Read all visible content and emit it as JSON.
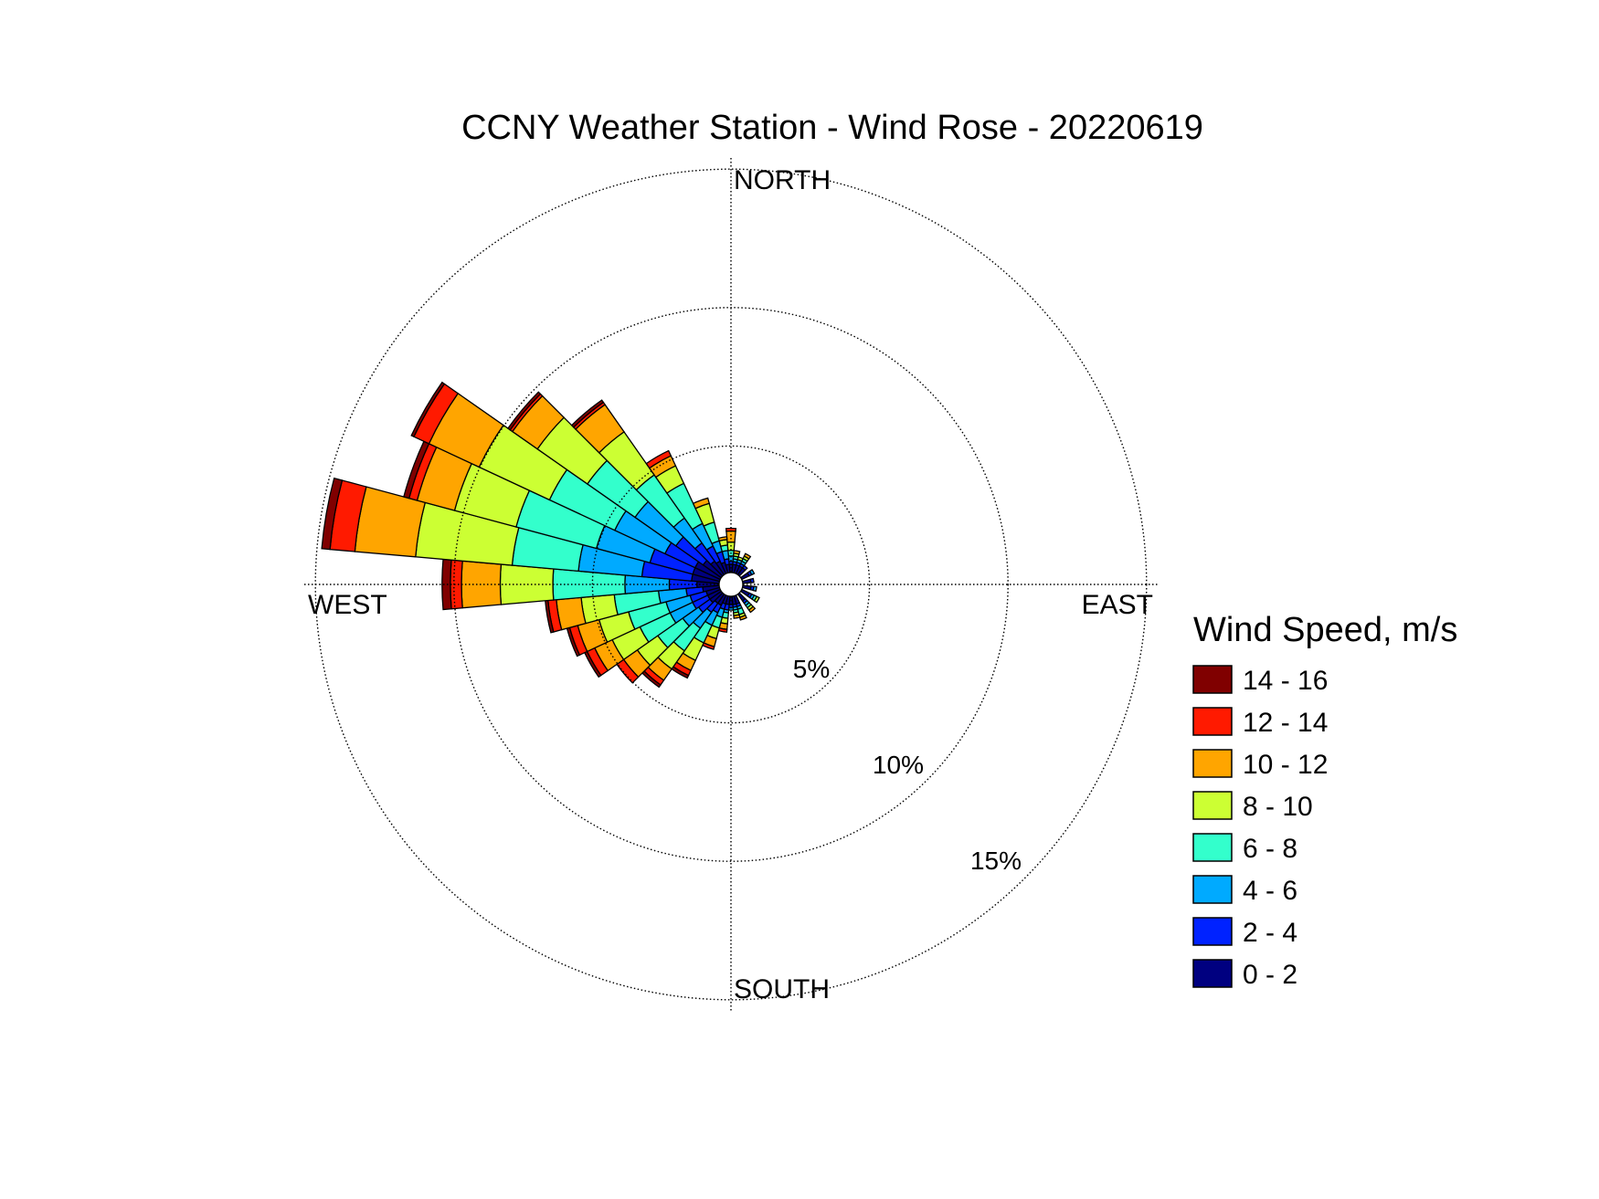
{
  "chart_data": {
    "type": "windrose",
    "title": "CCNY Weather Station - Wind Rose - 20220619",
    "direction_labels": {
      "north": "NORTH",
      "south": "SOUTH",
      "east": "EAST",
      "west": "WEST"
    },
    "radial_ticks": [
      {
        "value": 5,
        "label": "5%"
      },
      {
        "value": 10,
        "label": "10%"
      },
      {
        "value": 15,
        "label": "15%"
      }
    ],
    "rmax": 15.5,
    "legend": {
      "title": "Wind Speed, m/s",
      "bins": [
        {
          "label": "14 - 16",
          "color": "#800000"
        },
        {
          "label": "12 - 14",
          "color": "#ff1a00"
        },
        {
          "label": "10 - 12",
          "color": "#ffa500"
        },
        {
          "label": "8 - 10",
          "color": "#ccff33"
        },
        {
          "label": "6 - 8",
          "color": "#33ffcc"
        },
        {
          "label": "4 - 6",
          "color": "#00aaff"
        },
        {
          "label": "2 - 4",
          "color": "#0022ff"
        },
        {
          "label": "0 - 2",
          "color": "#000080"
        }
      ]
    },
    "bin_order_inner_to_outer": [
      "0 - 2",
      "2 - 4",
      "4 - 6",
      "6 - 8",
      "8 - 10",
      "10 - 12",
      "12 - 14",
      "14 - 16"
    ],
    "bin_colors_inner_to_outer": [
      "#000080",
      "#0022ff",
      "#00aaff",
      "#33ffcc",
      "#ccff33",
      "#ffa500",
      "#ff1a00",
      "#800000"
    ],
    "sector_width_deg": 10,
    "sectors": [
      {
        "direction_deg": 0,
        "cumulative": [
          0.3,
          0.4,
          0.6,
          0.8,
          1.1,
          1.5,
          1.6,
          1.6
        ]
      },
      {
        "direction_deg": 10,
        "cumulative": [
          0.3,
          0.4,
          0.5,
          0.6,
          0.7,
          0.8,
          0.8,
          0.8
        ]
      },
      {
        "direction_deg": 20,
        "cumulative": [
          0.3,
          0.4,
          0.5,
          0.5,
          0.6,
          0.6,
          0.6,
          0.6
        ]
      },
      {
        "direction_deg": 30,
        "cumulative": [
          0.3,
          0.4,
          0.5,
          0.6,
          0.7,
          0.8,
          0.8,
          0.8
        ]
      },
      {
        "direction_deg": 40,
        "cumulative": [
          0.3,
          0.4,
          0.4,
          0.4,
          0.4,
          0.4,
          0.4,
          0.4
        ]
      },
      {
        "direction_deg": 60,
        "cumulative": [
          0.3,
          0.4,
          0.5,
          0.5,
          0.5,
          0.5,
          0.5,
          0.5
        ]
      },
      {
        "direction_deg": 80,
        "cumulative": [
          0.3,
          0.4,
          0.4,
          0.4,
          0.4,
          0.4,
          0.4,
          0.4
        ]
      },
      {
        "direction_deg": 100,
        "cumulative": [
          0.3,
          0.4,
          0.5,
          0.5,
          0.5,
          0.5,
          0.5,
          0.5
        ]
      },
      {
        "direction_deg": 120,
        "cumulative": [
          0.3,
          0.4,
          0.5,
          0.6,
          0.7,
          0.7,
          0.7,
          0.7
        ]
      },
      {
        "direction_deg": 140,
        "cumulative": [
          0.3,
          0.4,
          0.5,
          0.6,
          0.7,
          0.8,
          0.8,
          0.8
        ]
      },
      {
        "direction_deg": 160,
        "cumulative": [
          0.3,
          0.4,
          0.5,
          0.7,
          0.8,
          0.9,
          0.9,
          0.9
        ]
      },
      {
        "direction_deg": 170,
        "cumulative": [
          0.3,
          0.4,
          0.5,
          0.6,
          0.7,
          0.8,
          0.8,
          0.8
        ]
      },
      {
        "direction_deg": 180,
        "cumulative": [
          0.3,
          0.4,
          0.5,
          0.5,
          0.5,
          0.5,
          0.5,
          0.5
        ]
      },
      {
        "direction_deg": 190,
        "cumulative": [
          0.3,
          0.5,
          0.6,
          0.8,
          1.0,
          1.2,
          1.3,
          1.3
        ]
      },
      {
        "direction_deg": 200,
        "cumulative": [
          0.3,
          0.5,
          0.8,
          1.2,
          1.6,
          1.9,
          2.0,
          2.0
        ]
      },
      {
        "direction_deg": 210,
        "cumulative": [
          0.4,
          0.7,
          1.2,
          1.9,
          2.6,
          3.0,
          3.2,
          3.3
        ]
      },
      {
        "direction_deg": 220,
        "cumulative": [
          0.4,
          0.8,
          1.5,
          2.5,
          3.3,
          3.8,
          4.0,
          4.1
        ]
      },
      {
        "direction_deg": 230,
        "cumulative": [
          0.5,
          1.0,
          1.7,
          2.8,
          3.7,
          4.3,
          4.6,
          4.6
        ]
      },
      {
        "direction_deg": 240,
        "cumulative": [
          0.5,
          1.1,
          2.0,
          3.2,
          4.3,
          5.0,
          5.3,
          5.4
        ]
      },
      {
        "direction_deg": 250,
        "cumulative": [
          0.5,
          1.1,
          2.0,
          3.4,
          4.5,
          5.3,
          5.6,
          5.7
        ]
      },
      {
        "direction_deg": 260,
        "cumulative": [
          0.6,
          1.2,
          2.2,
          3.8,
          5.0,
          5.9,
          6.2,
          6.3
        ]
      },
      {
        "direction_deg": 270,
        "cumulative": [
          0.8,
          1.8,
          3.4,
          6.0,
          7.9,
          9.3,
          9.7,
          10.0
        ]
      },
      {
        "direction_deg": 280,
        "cumulative": [
          1.0,
          2.8,
          5.1,
          7.5,
          11.0,
          13.2,
          14.1,
          14.4
        ]
      },
      {
        "direction_deg": 290,
        "cumulative": [
          1.0,
          2.6,
          4.6,
          7.6,
          9.9,
          11.3,
          11.6,
          11.8
        ]
      },
      {
        "direction_deg": 300,
        "cumulative": [
          1.0,
          2.2,
          4.2,
          6.8,
          9.6,
          11.6,
          12.2,
          12.3
        ]
      },
      {
        "direction_deg": 310,
        "cumulative": [
          0.8,
          2.0,
          3.8,
          5.9,
          8.1,
          9.2,
          9.3,
          9.4
        ]
      },
      {
        "direction_deg": 320,
        "cumulative": [
          0.6,
          1.4,
          2.5,
          4.4,
          6.3,
          7.5,
          7.6,
          7.7
        ]
      },
      {
        "direction_deg": 330,
        "cumulative": [
          0.5,
          1.1,
          2.0,
          3.6,
          4.3,
          4.7,
          4.9,
          4.9
        ]
      },
      {
        "direction_deg": 340,
        "cumulative": [
          0.4,
          0.8,
          1.2,
          1.9,
          2.6,
          2.8,
          2.8,
          2.8
        ]
      },
      {
        "direction_deg": 350,
        "cumulative": [
          0.3,
          0.5,
          0.8,
          1.0,
          1.2,
          1.3,
          1.3,
          1.3
        ]
      }
    ]
  }
}
